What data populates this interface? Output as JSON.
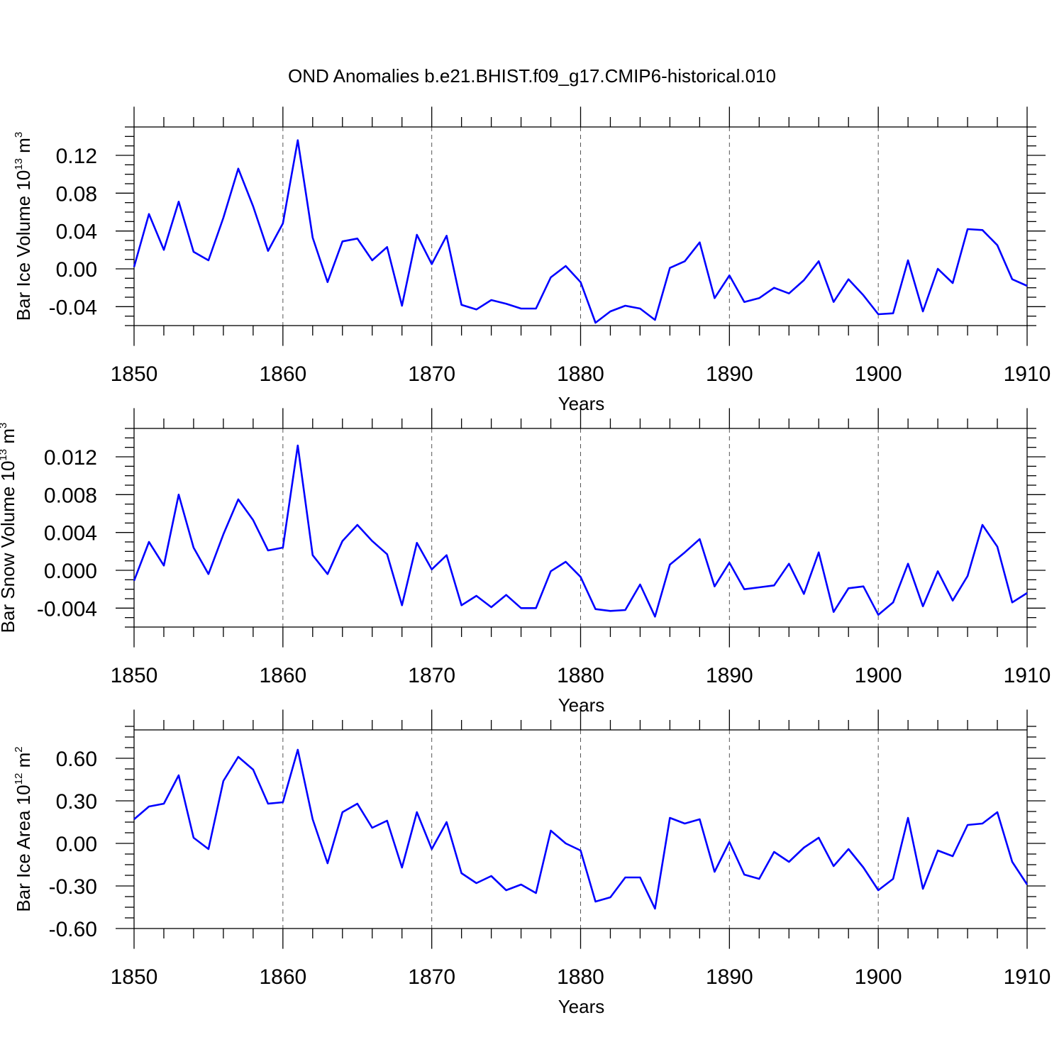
{
  "title": "OND Anomalies b.e21.BHIST.f09_g17.CMIP6-historical.010",
  "chart_data": [
    {
      "type": "line",
      "title": "",
      "xlabel": "Years",
      "ylabel": "Bar Ice Volume 10",
      "ylabel_exp": "13",
      "ylabel_unit": " m",
      "ylabel_unit_exp": "3",
      "xlim": [
        1850,
        1910
      ],
      "ylim": [
        -0.06,
        0.15
      ],
      "xticks": [
        1850,
        1860,
        1870,
        1880,
        1890,
        1900,
        1910
      ],
      "xtick_labels": [
        "1850",
        "1860",
        "1870",
        "1880",
        "1890",
        "1900",
        "1910"
      ],
      "yticks": [
        -0.04,
        0.0,
        0.04,
        0.08,
        0.12
      ],
      "ytick_labels": [
        "-0.04",
        "0.00",
        "0.04",
        "0.08",
        "0.12"
      ],
      "grid": "vertical dashed at major x ticks",
      "color": "#0000ff",
      "x": [
        1850,
        1851,
        1852,
        1853,
        1854,
        1855,
        1856,
        1857,
        1858,
        1859,
        1860,
        1861,
        1862,
        1863,
        1864,
        1865,
        1866,
        1867,
        1868,
        1869,
        1870,
        1871,
        1872,
        1873,
        1874,
        1875,
        1876,
        1877,
        1878,
        1879,
        1880,
        1881,
        1882,
        1883,
        1884,
        1885,
        1886,
        1887,
        1888,
        1889,
        1890,
        1891,
        1892,
        1893,
        1894,
        1895,
        1896,
        1897,
        1898,
        1899,
        1900,
        1901,
        1902,
        1903,
        1904,
        1905,
        1906,
        1907,
        1908,
        1909,
        1910
      ],
      "values": [
        0.002,
        0.058,
        0.02,
        0.071,
        0.018,
        0.009,
        0.054,
        0.106,
        0.066,
        0.019,
        0.048,
        0.136,
        0.033,
        -0.014,
        0.029,
        0.032,
        0.009,
        0.023,
        -0.039,
        0.036,
        0.005,
        0.035,
        -0.038,
        -0.043,
        -0.033,
        -0.037,
        -0.042,
        -0.042,
        -0.009,
        0.003,
        -0.014,
        -0.057,
        -0.045,
        -0.039,
        -0.042,
        -0.054,
        0.001,
        0.008,
        0.028,
        -0.031,
        -0.007,
        -0.035,
        -0.031,
        -0.02,
        -0.026,
        -0.012,
        0.008,
        -0.035,
        -0.011,
        -0.028,
        -0.048,
        -0.047,
        0.009,
        -0.045,
        0.0,
        -0.015,
        0.042,
        0.041,
        0.025,
        -0.011,
        -0.018
      ]
    },
    {
      "type": "line",
      "title": "",
      "xlabel": "Years",
      "ylabel": "Bar Snow Volume 10",
      "ylabel_exp": "13",
      "ylabel_unit": " m",
      "ylabel_unit_exp": "3",
      "xlim": [
        1850,
        1910
      ],
      "ylim": [
        -0.006,
        0.015
      ],
      "xticks": [
        1850,
        1860,
        1870,
        1880,
        1890,
        1900,
        1910
      ],
      "xtick_labels": [
        "1850",
        "1860",
        "1870",
        "1880",
        "1890",
        "1900",
        "1910"
      ],
      "yticks": [
        -0.004,
        0.0,
        0.004,
        0.008,
        0.012
      ],
      "ytick_labels": [
        "-0.004",
        "0.000",
        "0.004",
        "0.008",
        "0.012"
      ],
      "grid": "vertical dashed at major x ticks",
      "color": "#0000ff",
      "x": [
        1850,
        1851,
        1852,
        1853,
        1854,
        1855,
        1856,
        1857,
        1858,
        1859,
        1860,
        1861,
        1862,
        1863,
        1864,
        1865,
        1866,
        1867,
        1868,
        1869,
        1870,
        1871,
        1872,
        1873,
        1874,
        1875,
        1876,
        1877,
        1878,
        1879,
        1880,
        1881,
        1882,
        1883,
        1884,
        1885,
        1886,
        1887,
        1888,
        1889,
        1890,
        1891,
        1892,
        1893,
        1894,
        1895,
        1896,
        1897,
        1898,
        1899,
        1900,
        1901,
        1902,
        1903,
        1904,
        1905,
        1906,
        1907,
        1908,
        1909,
        1910
      ],
      "values": [
        -0.0011,
        0.003,
        0.0005,
        0.008,
        0.0024,
        -0.0004,
        0.0038,
        0.0075,
        0.0053,
        0.0021,
        0.0024,
        0.0132,
        0.0016,
        -0.0004,
        0.0031,
        0.0048,
        0.0031,
        0.0017,
        -0.0037,
        0.0029,
        0.0001,
        0.0016,
        -0.0037,
        -0.0027,
        -0.0039,
        -0.0026,
        -0.004,
        -0.004,
        -0.0001,
        0.0009,
        -0.0007,
        -0.0041,
        -0.0043,
        -0.0042,
        -0.0015,
        -0.0049,
        0.0006,
        0.0019,
        0.0033,
        -0.0017,
        0.0008,
        -0.002,
        -0.0018,
        -0.0016,
        0.0007,
        -0.0025,
        0.0019,
        -0.0044,
        -0.0019,
        -0.0017,
        -0.0047,
        -0.0034,
        0.0007,
        -0.0038,
        -0.0001,
        -0.0032,
        -0.0006,
        0.0048,
        0.0025,
        -0.0034,
        -0.0024
      ]
    },
    {
      "type": "line",
      "title": "",
      "xlabel": "Years",
      "ylabel": "Bar Ice Area 10",
      "ylabel_exp": "12",
      "ylabel_unit": " m",
      "ylabel_unit_exp": "2",
      "xlim": [
        1850,
        1910
      ],
      "ylim": [
        -0.6,
        0.8
      ],
      "xticks": [
        1850,
        1860,
        1870,
        1880,
        1890,
        1900,
        1910
      ],
      "xtick_labels": [
        "1850",
        "1860",
        "1870",
        "1880",
        "1890",
        "1900",
        "1910"
      ],
      "yticks": [
        -0.6,
        -0.3,
        0.0,
        0.3,
        0.6
      ],
      "ytick_labels": [
        "-0.60",
        "-0.30",
        "0.00",
        "0.30",
        "0.60"
      ],
      "grid": "vertical dashed at major x ticks",
      "color": "#0000ff",
      "x": [
        1850,
        1851,
        1852,
        1853,
        1854,
        1855,
        1856,
        1857,
        1858,
        1859,
        1860,
        1861,
        1862,
        1863,
        1864,
        1865,
        1866,
        1867,
        1868,
        1869,
        1870,
        1871,
        1872,
        1873,
        1874,
        1875,
        1876,
        1877,
        1878,
        1879,
        1880,
        1881,
        1882,
        1883,
        1884,
        1885,
        1886,
        1887,
        1888,
        1889,
        1890,
        1891,
        1892,
        1893,
        1894,
        1895,
        1896,
        1897,
        1898,
        1899,
        1900,
        1901,
        1902,
        1903,
        1904,
        1905,
        1906,
        1907,
        1908,
        1909,
        1910
      ],
      "values": [
        0.17,
        0.26,
        0.28,
        0.48,
        0.04,
        -0.04,
        0.44,
        0.61,
        0.52,
        0.28,
        0.29,
        0.66,
        0.17,
        -0.14,
        0.22,
        0.28,
        0.11,
        0.16,
        -0.17,
        0.22,
        -0.04,
        0.15,
        -0.21,
        -0.28,
        -0.23,
        -0.33,
        -0.29,
        -0.35,
        0.09,
        0.0,
        -0.05,
        -0.41,
        -0.38,
        -0.24,
        -0.24,
        -0.46,
        0.18,
        0.14,
        0.17,
        -0.2,
        0.01,
        -0.22,
        -0.25,
        -0.06,
        -0.13,
        -0.03,
        0.04,
        -0.16,
        -0.04,
        -0.17,
        -0.33,
        -0.25,
        0.18,
        -0.32,
        -0.05,
        -0.09,
        0.13,
        0.14,
        0.22,
        -0.13,
        -0.29
      ]
    }
  ]
}
